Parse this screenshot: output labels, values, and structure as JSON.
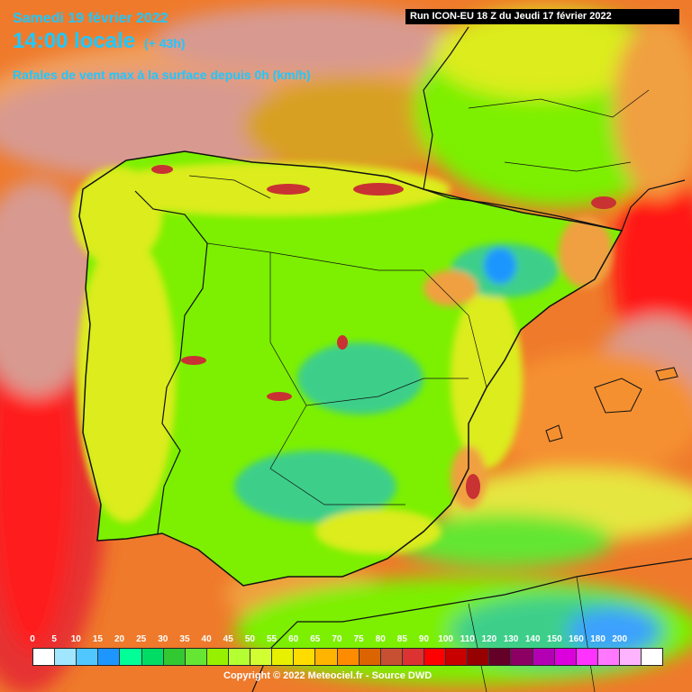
{
  "header": {
    "date": "Samedi 19 février 2022",
    "time": "14:00 locale",
    "lead": "(+ 43h)",
    "description": "Rafales de vent max à la surface depuis 0h (km/h)",
    "run": "Run ICON-EU 18 Z du Jeudi 17 février 2022"
  },
  "legend": {
    "labels": [
      "0",
      "5",
      "10",
      "15",
      "20",
      "25",
      "30",
      "35",
      "40",
      "45",
      "50",
      "55",
      "60",
      "65",
      "70",
      "75",
      "80",
      "85",
      "90",
      "100",
      "110",
      "120",
      "130",
      "140",
      "150",
      "160",
      "180",
      "200"
    ],
    "colors": [
      "#ffffff",
      "#a0e6ff",
      "#50c8ff",
      "#1e96ff",
      "#00ff96",
      "#00dc64",
      "#32c832",
      "#64e632",
      "#96f000",
      "#b4ff32",
      "#d2ff32",
      "#e6f000",
      "#ffdc00",
      "#ffb400",
      "#ff8c00",
      "#dc6400",
      "#c85032",
      "#dc3232",
      "#ff0000",
      "#c80000",
      "#960000",
      "#640028",
      "#8c0064",
      "#b400b4",
      "#dc00dc",
      "#ff32ff",
      "#ff78ff",
      "#ffb4ff",
      "#ffffff"
    ]
  },
  "copyright": "Copyright © 2022 Meteociel.fr - Source DWD",
  "map": {
    "region": "Iberian Peninsula",
    "palette": {
      "sea_orange": "#ef7a2b",
      "sea_light": "#f0a060",
      "sea_pink": "#d89a90",
      "sea_red": "#ee2222",
      "land_green": "#7cf000",
      "land_yellow": "#dcec1c",
      "land_teal": "#3ccf8a",
      "land_blue": "#1e96ff",
      "hills_red": "#c83232",
      "border": "#111111"
    }
  }
}
